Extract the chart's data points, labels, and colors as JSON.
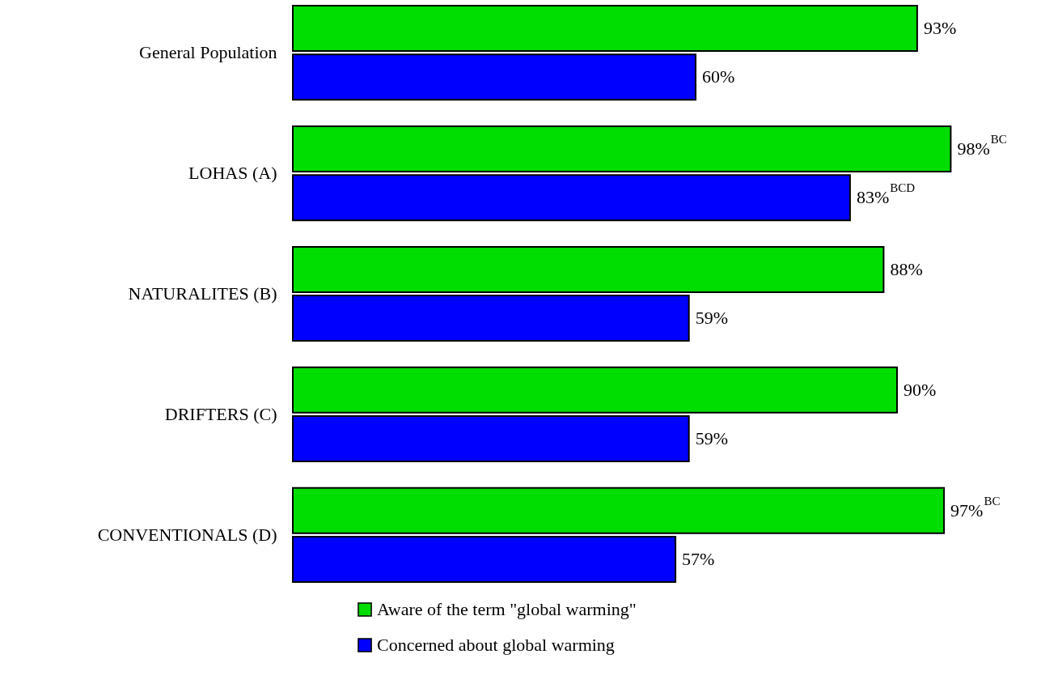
{
  "chart_data": {
    "type": "bar",
    "orientation": "horizontal",
    "categories": [
      "General Population",
      "LOHAS (A)",
      "NATURALITES (B)",
      "DRIFTERS (C)",
      "CONVENTIONALS (D)"
    ],
    "series": [
      {
        "name": "Aware of the term \"global warming\"",
        "color": "#00dd00",
        "values": [
          93,
          98,
          88,
          90,
          97
        ],
        "value_labels": [
          "93%",
          "98%$^{BC}$",
          "88%",
          "90%",
          "97%$^{BC}$"
        ]
      },
      {
        "name": "Concerned about global warming",
        "color": "#0000ff",
        "values": [
          60,
          83,
          59,
          59,
          57
        ],
        "value_labels": [
          "60%",
          "83%$^{BCD}$",
          "59%",
          "59%",
          "57%"
        ]
      }
    ],
    "legend": "bottom",
    "tick_labels": "y"
  }
}
